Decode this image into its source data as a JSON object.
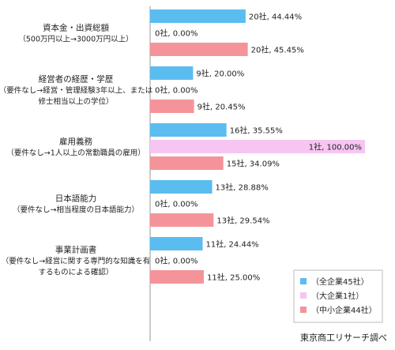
{
  "chart_data": {
    "type": "bar",
    "orientation": "horizontal",
    "xlim": [
      0,
      100
    ],
    "categories": [
      {
        "title": "資本金・出資総額",
        "sub": [
          "（500万円以上→3000万円以上）"
        ]
      },
      {
        "title": "経営者の経歴・学歴",
        "sub": [
          "（要件なし→経営・管理経験3年以上、または",
          "修士相当以上の学位）"
        ]
      },
      {
        "title": "雇用義務",
        "sub": [
          "（要件なし→1人以上の常勤職員の雇用）"
        ]
      },
      {
        "title": "日本語能力",
        "sub": [
          "（要件なし→相当程度の日本語能力）"
        ]
      },
      {
        "title": "事業計画書",
        "sub": [
          "（要件なし→経営に関する専門的な知識を有",
          "するものによる確認）"
        ]
      }
    ],
    "series": [
      {
        "name": "（全企業45社）",
        "color": "#5bbcf0",
        "counts": [
          20,
          9,
          16,
          13,
          11
        ],
        "values": [
          44.44,
          20.0,
          35.55,
          28.88,
          24.44
        ],
        "labels": [
          "20社, 44.44%",
          "9社, 20.00%",
          "16社, 35.55%",
          "13社, 28.88%",
          "11社, 24.44%"
        ]
      },
      {
        "name": "（大企業1社）",
        "color": "#f6c5f2",
        "counts": [
          0,
          0,
          1,
          0,
          0
        ],
        "values": [
          0,
          0,
          100.0,
          0,
          0
        ],
        "labels": [
          "0社, 0.00%",
          "0社, 0.00%",
          "1社, 100.00%",
          "0社, 0.00%",
          "0社, 0.00%"
        ]
      },
      {
        "name": "（中小企業44社）",
        "color": "#f4949a",
        "counts": [
          20,
          9,
          15,
          13,
          11
        ],
        "values": [
          45.45,
          20.45,
          34.09,
          29.54,
          25.0
        ],
        "labels": [
          "20社, 45.45%",
          "9社, 20.45%",
          "15社, 34.09%",
          "13社, 29.54%",
          "11社, 25.00%"
        ]
      }
    ],
    "legend_position": "bottom-right"
  },
  "source": "東京商工リサーチ調べ"
}
